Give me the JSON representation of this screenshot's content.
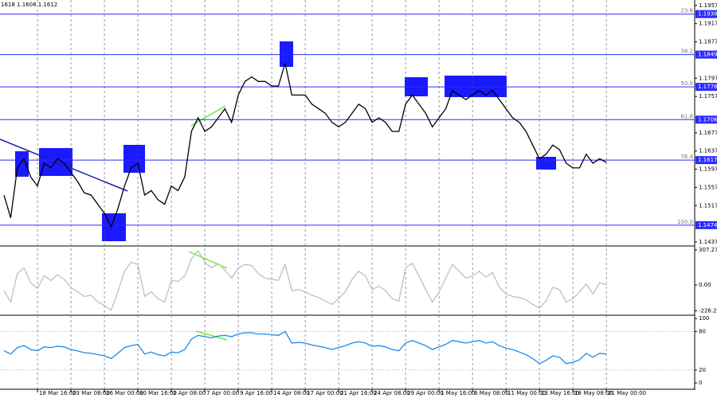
{
  "header": "1618 1.1608 1.1612",
  "chart_data": [
    {
      "type": "line",
      "color": "#000000",
      "x": [
        0,
        1,
        2,
        3,
        4,
        5,
        6,
        7,
        8,
        9,
        10,
        11,
        12,
        13,
        14,
        15,
        16,
        17,
        18,
        19,
        20,
        21,
        22,
        23,
        24,
        25,
        26,
        27,
        28,
        29,
        30,
        31,
        32,
        33,
        34,
        35,
        36,
        37,
        38,
        39,
        40,
        41,
        42,
        43,
        44,
        45,
        46,
        47,
        48,
        49,
        50,
        51,
        52,
        53,
        54,
        55,
        56,
        57,
        58,
        59,
        60,
        61,
        62,
        63,
        64,
        65,
        66,
        67,
        68,
        69,
        70,
        71,
        72,
        73,
        74,
        75,
        76,
        77,
        78,
        79,
        80,
        81,
        82,
        83,
        84,
        85,
        86,
        87,
        88,
        89,
        90
      ],
      "values": [
        1.154,
        1.149,
        1.16,
        1.162,
        1.158,
        1.156,
        1.161,
        1.16,
        1.162,
        1.161,
        1.159,
        1.157,
        1.1545,
        1.154,
        1.152,
        1.15,
        1.147,
        1.151,
        1.156,
        1.16,
        1.161,
        1.154,
        1.155,
        1.153,
        1.152,
        1.156,
        1.155,
        1.158,
        1.168,
        1.171,
        1.168,
        1.169,
        1.171,
        1.173,
        1.17,
        1.176,
        1.179,
        1.18,
        1.179,
        1.179,
        1.178,
        1.178,
        1.183,
        1.176,
        1.176,
        1.176,
        1.174,
        1.173,
        1.172,
        1.17,
        1.169,
        1.17,
        1.172,
        1.174,
        1.173,
        1.17,
        1.171,
        1.17,
        1.168,
        1.168,
        1.174,
        1.176,
        1.174,
        1.172,
        1.169,
        1.171,
        1.173,
        1.177,
        1.176,
        1.175,
        1.176,
        1.177,
        1.176,
        1.177,
        1.175,
        1.173,
        1.171,
        1.17,
        1.168,
        1.165,
        1.162,
        1.163,
        1.165,
        1.164,
        1.161,
        1.16,
        1.16,
        1.163,
        1.161,
        1.162,
        1.1612
      ],
      "xlim": [
        -0.6,
        103.2
      ],
      "xticks": [
        {
          "value": 5,
          "label": "18 Mar 16:00"
        },
        {
          "value": 10,
          "label": "23 Mar 08:00"
        },
        {
          "value": 15,
          "label": "26 Mar 00:00"
        },
        {
          "value": 20,
          "label": "30 Mar 16:00"
        },
        {
          "value": 25,
          "label": "2 Apr 08:00"
        },
        {
          "value": 30,
          "label": "7 Apr 00:00"
        },
        {
          "value": 35,
          "label": "9 Apr 16:00"
        },
        {
          "value": 40,
          "label": "14 Apr 08:00"
        },
        {
          "value": 45,
          "label": "17 Apr 00:00"
        },
        {
          "value": 50,
          "label": "21 Apr 16:00"
        },
        {
          "value": 55,
          "label": "24 Apr 08:00"
        },
        {
          "value": 60,
          "label": "29 Apr 00:00"
        },
        {
          "value": 65,
          "label": "1 May 16:00"
        },
        {
          "value": 70,
          "label": "6 May 08:00"
        },
        {
          "value": 75,
          "label": "11 May 00:00"
        },
        {
          "value": 80,
          "label": "13 May 16:00"
        },
        {
          "value": 85,
          "label": "18 May 08:00"
        },
        {
          "value": 90,
          "label": "21 May 00:00"
        }
      ],
      "ylim": [
        1.143,
        1.1969
      ],
      "yticks": [
        1.1957,
        1.1917,
        1.1877,
        1.1797,
        1.1757,
        1.1677,
        1.1637,
        1.1597,
        1.1557,
        1.1517,
        1.1437
      ],
      "levels": [
        {
          "price": 1.1938,
          "fib": "23.6"
        },
        {
          "price": 1.1849,
          "fib": "38.2"
        },
        {
          "price": 1.1778,
          "fib": "50.0"
        },
        {
          "price": 1.1706,
          "fib": "61.8"
        },
        {
          "price": 1.1617,
          "fib": "76.4"
        },
        {
          "price": 1.1474,
          "fib": "100.0"
        }
      ],
      "level_color": "#2b2bff"
    },
    {
      "type": "line",
      "color": "#c0c0c0",
      "x": [
        0,
        1,
        2,
        3,
        4,
        5,
        6,
        7,
        8,
        9,
        10,
        11,
        12,
        13,
        14,
        15,
        16,
        17,
        18,
        19,
        20,
        21,
        22,
        23,
        24,
        25,
        26,
        27,
        28,
        29,
        30,
        31,
        32,
        33,
        34,
        35,
        36,
        37,
        38,
        39,
        40,
        41,
        42,
        43,
        44,
        45,
        46,
        47,
        48,
        49,
        50,
        51,
        52,
        53,
        54,
        55,
        56,
        57,
        58,
        59,
        60,
        61,
        62,
        63,
        64,
        65,
        66,
        67,
        68,
        69,
        70,
        71,
        72,
        73,
        74,
        75,
        76,
        77,
        78,
        79,
        80,
        81,
        82,
        83,
        84,
        85,
        86,
        87,
        88,
        89,
        90
      ],
      "values": [
        -50,
        -150,
        100,
        150,
        20,
        -30,
        80,
        40,
        90,
        50,
        -20,
        -60,
        -100,
        -90,
        -150,
        -180,
        -220,
        -60,
        120,
        200,
        180,
        -100,
        -60,
        -120,
        -150,
        40,
        30,
        80,
        230,
        300,
        200,
        150,
        190,
        130,
        60,
        150,
        180,
        170,
        100,
        60,
        50,
        40,
        180,
        -50,
        -40,
        -60,
        -90,
        -110,
        -140,
        -170,
        -120,
        -60,
        50,
        120,
        80,
        -40,
        -10,
        -50,
        -120,
        -140,
        150,
        190,
        80,
        -40,
        -150,
        -60,
        60,
        180,
        120,
        60,
        80,
        120,
        70,
        110,
        -20,
        -80,
        -100,
        -110,
        -130,
        -170,
        -200,
        -140,
        -20,
        -40,
        -150,
        -120,
        -60,
        10,
        -80,
        20,
        0
      ],
      "ylim": [
        -265,
        335
      ],
      "yticks": [
        307.2712,
        {
          "value": 0,
          "label": "0.00"
        },
        -226.256
      ]
    },
    {
      "type": "line",
      "color": "#1e8ae6",
      "x": [
        0,
        1,
        2,
        3,
        4,
        5,
        6,
        7,
        8,
        9,
        10,
        11,
        12,
        13,
        14,
        15,
        16,
        17,
        18,
        19,
        20,
        21,
        22,
        23,
        24,
        25,
        26,
        27,
        28,
        29,
        30,
        31,
        32,
        33,
        34,
        35,
        36,
        37,
        38,
        39,
        40,
        41,
        42,
        43,
        44,
        45,
        46,
        47,
        48,
        49,
        50,
        51,
        52,
        53,
        54,
        55,
        56,
        57,
        58,
        59,
        60,
        61,
        62,
        63,
        64,
        65,
        66,
        67,
        68,
        69,
        70,
        71,
        72,
        73,
        74,
        75,
        76,
        77,
        78,
        79,
        80,
        81,
        82,
        83,
        84,
        85,
        86,
        87,
        88,
        89,
        90
      ],
      "values": [
        50,
        45,
        55,
        58,
        52,
        50,
        56,
        55,
        57,
        56,
        52,
        50,
        47,
        46,
        44,
        42,
        38,
        46,
        55,
        58,
        60,
        45,
        48,
        44,
        42,
        48,
        47,
        52,
        68,
        74,
        72,
        70,
        73,
        74,
        72,
        76,
        78,
        78,
        76,
        76,
        75,
        74,
        80,
        62,
        63,
        62,
        59,
        57,
        55,
        52,
        55,
        58,
        62,
        64,
        62,
        57,
        58,
        56,
        52,
        50,
        62,
        66,
        62,
        58,
        52,
        56,
        60,
        66,
        64,
        62,
        64,
        66,
        62,
        64,
        58,
        54,
        52,
        48,
        44,
        38,
        30,
        35,
        42,
        40,
        30,
        32,
        36,
        46,
        40,
        46,
        45
      ],
      "ylim": [
        -11,
        104
      ],
      "yticks": [
        100,
        80,
        20,
        0
      ],
      "grid_levels": [
        80,
        20
      ]
    }
  ]
}
